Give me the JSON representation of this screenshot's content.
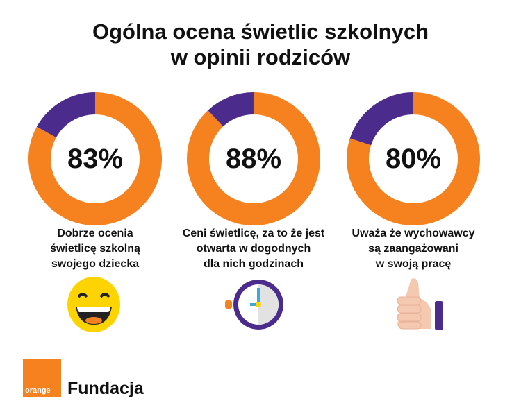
{
  "title_line1": "Ogólna ocena świetlic szkolnych",
  "title_line2": "w opinii rodziców",
  "colors": {
    "positive": "#F5821F",
    "rest": "#4B2C8C"
  },
  "chart_data": {
    "type": "pie",
    "variant": "donut",
    "title": "Ogólna ocena świetlic szkolnych w opinii rodziców",
    "charts": [
      {
        "value": 83,
        "label": "83%",
        "caption": [
          "Dobrze ocenia",
          "świetlicę szkolną",
          "swojego dziecka"
        ],
        "icon": "laughing-face-icon"
      },
      {
        "value": 88,
        "label": "88%",
        "caption": [
          "Ceni świetlicę, za to że jest",
          "otwarta w dogodnych",
          "dla nich godzinach"
        ],
        "icon": "clock-icon"
      },
      {
        "value": 80,
        "label": "80%",
        "caption": [
          "Uważa że wychowawcy",
          "są zaangażowani",
          "w swoją pracę"
        ],
        "icon": "thumbs-up-icon"
      }
    ]
  },
  "footer": {
    "logo_text": "orange",
    "brand": "Fundacja"
  }
}
